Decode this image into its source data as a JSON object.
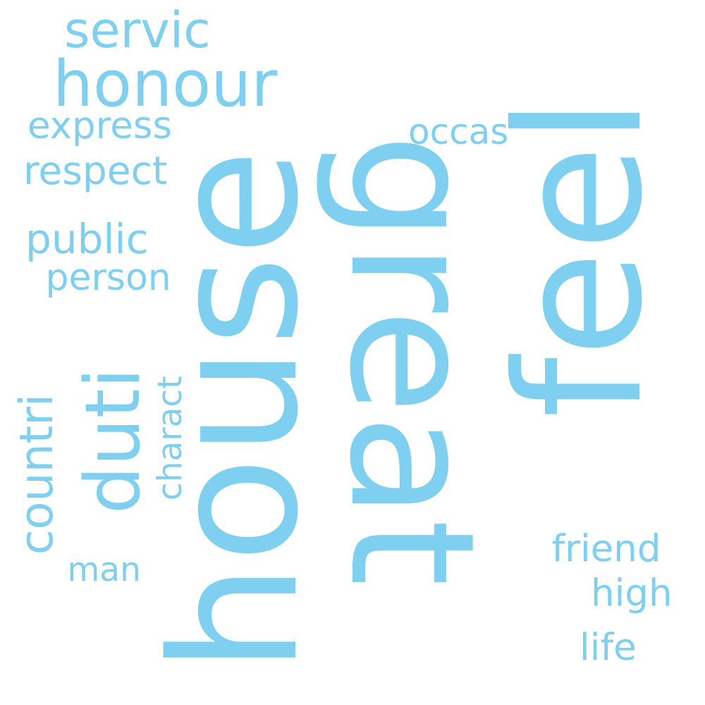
{
  "cloud": {
    "color": "#7ecff0",
    "words": [
      {
        "name": "word-house",
        "text": "house"
      },
      {
        "name": "word-great",
        "text": "great"
      },
      {
        "name": "word-feel",
        "text": "feel"
      },
      {
        "name": "word-honour",
        "text": "honour"
      },
      {
        "name": "word-servic",
        "text": "servic"
      },
      {
        "name": "word-express",
        "text": "express"
      },
      {
        "name": "word-occas",
        "text": "occas"
      },
      {
        "name": "word-respect",
        "text": "respect"
      },
      {
        "name": "word-public",
        "text": "public"
      },
      {
        "name": "word-person",
        "text": "person"
      },
      {
        "name": "word-countri",
        "text": "countri"
      },
      {
        "name": "word-duti",
        "text": "duti"
      },
      {
        "name": "word-charact",
        "text": "charact"
      },
      {
        "name": "word-man",
        "text": "man"
      },
      {
        "name": "word-friend",
        "text": "friend"
      },
      {
        "name": "word-high",
        "text": "high"
      },
      {
        "name": "word-life",
        "text": "life"
      }
    ]
  }
}
